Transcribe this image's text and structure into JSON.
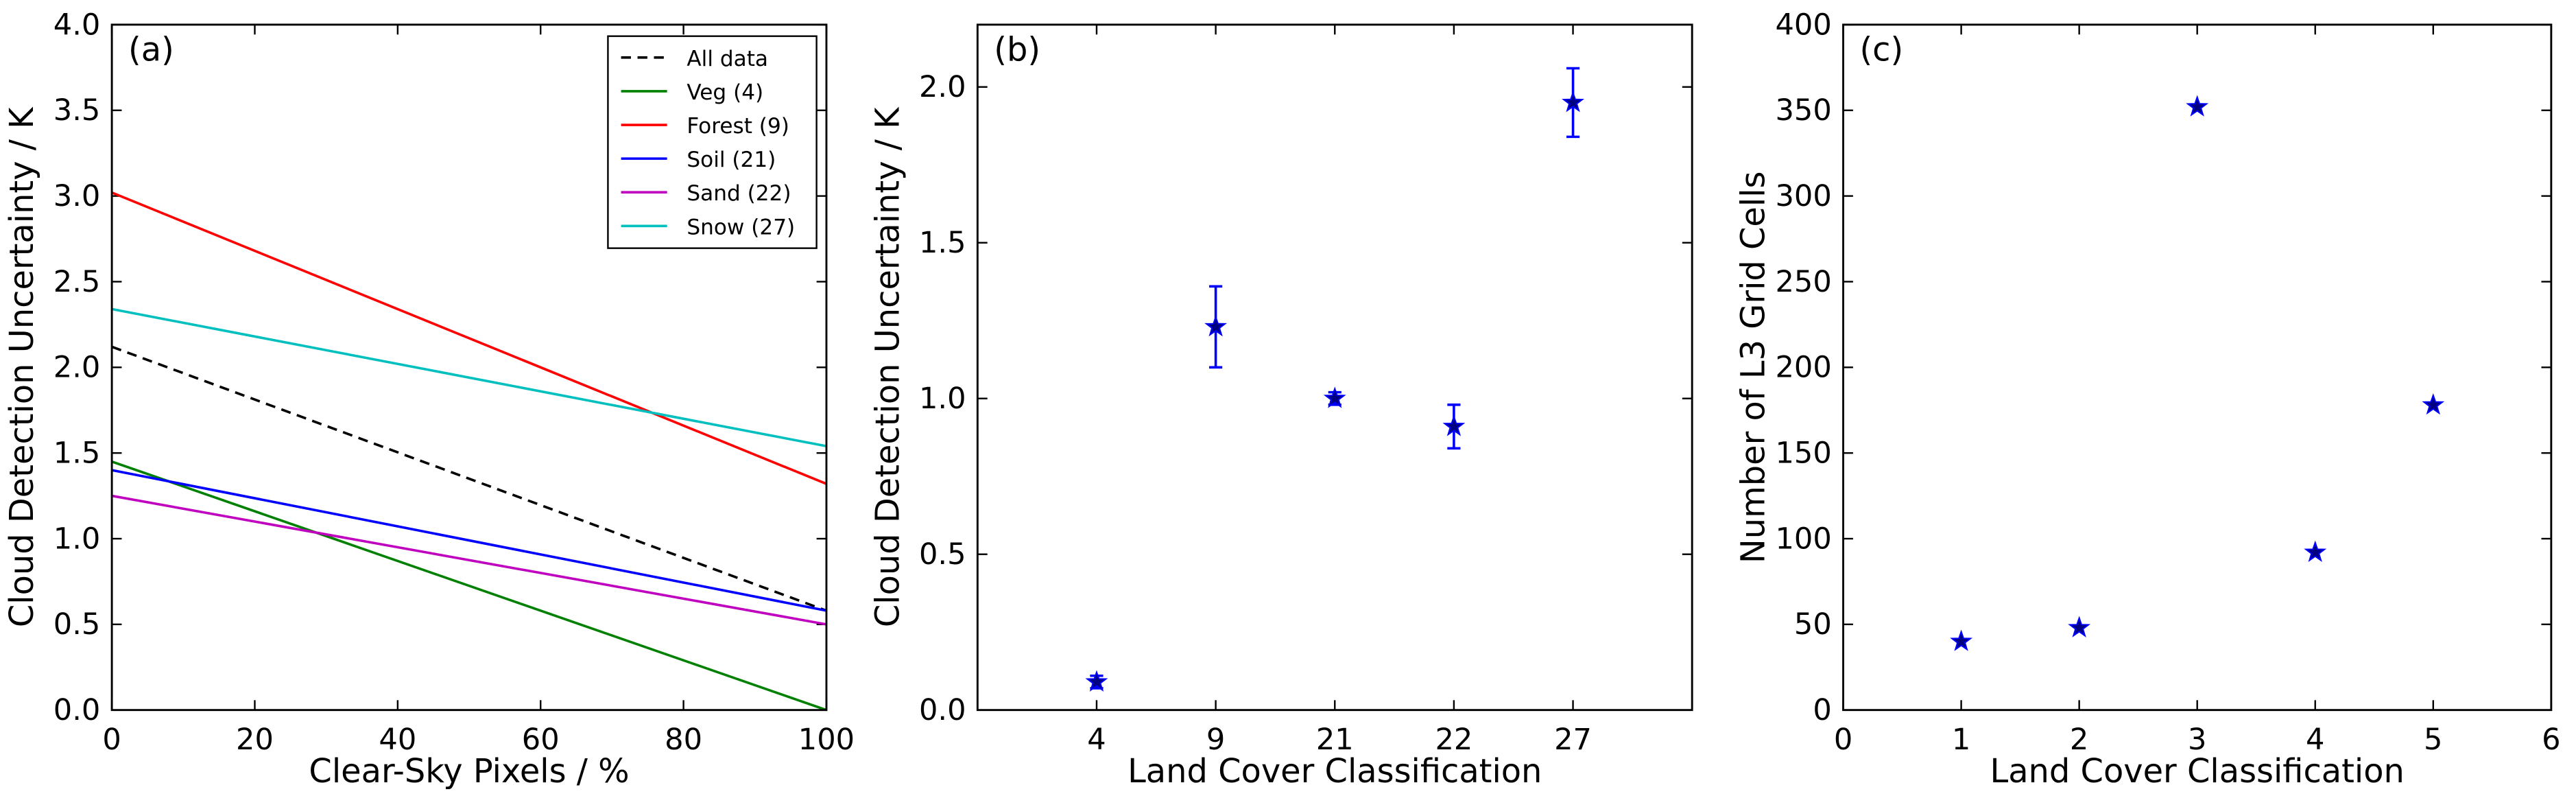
{
  "chart_data": [
    {
      "type": "line",
      "annotation": "(a)",
      "xlabel": "Clear-Sky Pixels / %",
      "ylabel": "Cloud Detection Uncertainty / K",
      "x": [
        0,
        100
      ],
      "series": [
        {
          "name": "All data",
          "color": "#000000",
          "style": "dashed",
          "values": [
            2.12,
            0.58
          ]
        },
        {
          "name": "Veg (4)",
          "color": "#008000",
          "values": [
            1.45,
            0.0
          ]
        },
        {
          "name": "Forest (9)",
          "color": "#ff0000",
          "values": [
            3.02,
            1.32
          ]
        },
        {
          "name": "Soil (21)",
          "color": "#0000ff",
          "values": [
            1.4,
            0.58
          ]
        },
        {
          "name": "Sand (22)",
          "color": "#bf00bf",
          "values": [
            1.25,
            0.5
          ]
        },
        {
          "name": "Snow (27)",
          "color": "#00bfbf",
          "values": [
            2.34,
            1.54
          ]
        }
      ],
      "xlim": [
        0,
        100
      ],
      "xticks": [
        0,
        20,
        40,
        60,
        80,
        100
      ],
      "ylim": [
        0,
        4
      ],
      "yticks": [
        {
          "value": 0,
          "label": "0.0"
        },
        {
          "value": 0.5,
          "label": "0.5"
        },
        {
          "value": 1,
          "label": "1.0"
        },
        {
          "value": 1.5,
          "label": "1.5"
        },
        {
          "value": 2,
          "label": "2.0"
        },
        {
          "value": 2.5,
          "label": "2.5"
        },
        {
          "value": 3,
          "label": "3.0"
        },
        {
          "value": 3.5,
          "label": "3.5"
        },
        {
          "value": 4,
          "label": "4.0"
        }
      ],
      "legend": "upper right"
    },
    {
      "type": "errorbar",
      "annotation": "(b)",
      "xlabel": "Land Cover Classification",
      "ylabel": "Cloud Detection Uncertainty / K",
      "categories": [
        "4",
        "9",
        "21",
        "22",
        "27"
      ],
      "values": [
        0.09,
        1.23,
        1.0,
        0.91,
        1.95
      ],
      "errors": [
        0.02,
        0.13,
        0.02,
        0.07,
        0.11
      ],
      "color": "#000080",
      "error_color": "#0000ff",
      "ylim": [
        0,
        2.2
      ],
      "yticks": [
        {
          "value": 0,
          "label": "0.0"
        },
        {
          "value": 0.5,
          "label": "0.5"
        },
        {
          "value": 1,
          "label": "1.0"
        },
        {
          "value": 1.5,
          "label": "1.5"
        },
        {
          "value": 2,
          "label": "2.0"
        }
      ]
    },
    {
      "type": "scatter",
      "annotation": "(c)",
      "xlabel": "Land Cover Classification",
      "ylabel": "Number of L3 Grid Cells",
      "x": [
        1,
        2,
        3,
        4,
        5
      ],
      "values": [
        40,
        48,
        352,
        92,
        178
      ],
      "color": "#000080",
      "xlim": [
        0,
        6
      ],
      "xticks": [
        0,
        1,
        2,
        3,
        4,
        5,
        6
      ],
      "ylim": [
        0,
        400
      ],
      "yticks": [
        0,
        50,
        100,
        150,
        200,
        250,
        300,
        350,
        400
      ]
    }
  ]
}
